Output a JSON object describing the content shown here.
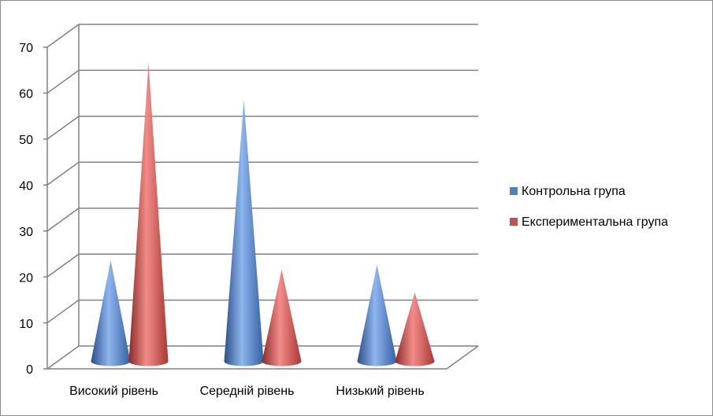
{
  "chart_data": {
    "type": "cone3d",
    "categories": [
      "Високий рівень",
      "Середній рівень",
      "Низький рівень"
    ],
    "series": [
      {
        "name": "Контрольна група",
        "color": "#4f81bd",
        "values": [
          22,
          57,
          21
        ]
      },
      {
        "name": "Експериментальна група",
        "color": "#c0504d",
        "values": [
          65,
          20,
          15
        ]
      }
    ],
    "ylim": [
      0,
      70
    ],
    "yticks": [
      0,
      10,
      20,
      30,
      40,
      50,
      60,
      70
    ],
    "grid": true,
    "legend": "right"
  }
}
